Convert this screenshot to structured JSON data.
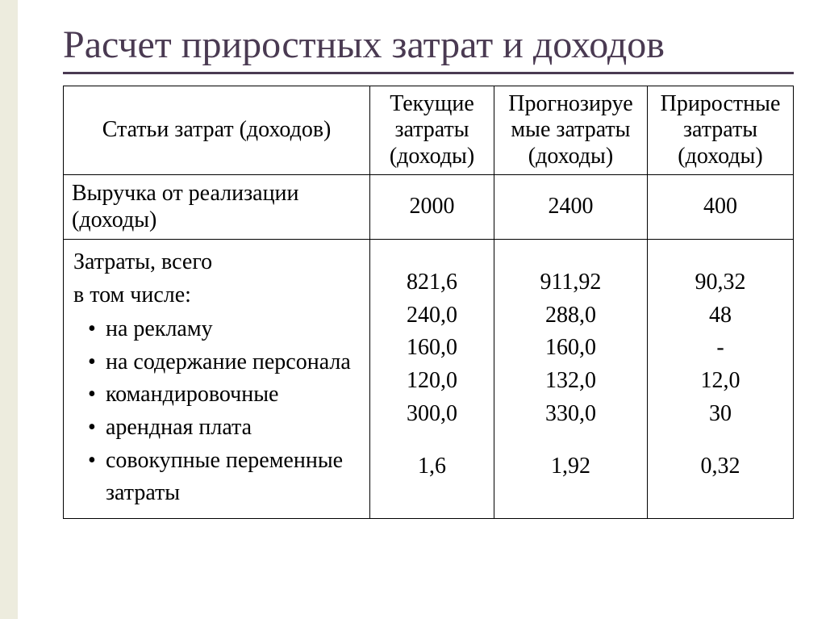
{
  "slide": {
    "title": "Расчет приростных затрат и доходов",
    "title_color": "#4a3a52",
    "accent_bar_color": "#edecde",
    "border_color": "#000000",
    "background_color": "#ffffff",
    "font_family": "Times New Roman",
    "title_fontsize_pt": 36,
    "cell_fontsize_pt": 21
  },
  "table": {
    "columns": [
      {
        "label_line1": "Статьи затрат (доходов)",
        "align": "center",
        "width_pct": 42
      },
      {
        "label_line1": "Текущие",
        "label_line2": "затраты",
        "label_line3": "(доходы)",
        "align": "center",
        "width_pct": 17
      },
      {
        "label_line1": "Прогнозируе",
        "label_line2": "мые затраты",
        "label_line3": "(доходы)",
        "align": "center",
        "width_pct": 21
      },
      {
        "label_line1": "Приростные",
        "label_line2": "затраты",
        "label_line3": "(доходы)",
        "align": "center",
        "width_pct": 20
      }
    ],
    "row_revenue": {
      "label_line1": "Выручка от реализации",
      "label_line2": "(доходы)",
      "current": "2000",
      "forecast": "2400",
      "incremental": "400"
    },
    "body": {
      "intro_line1": "Затраты, всего",
      "intro_line2": "в том числе:",
      "items": [
        "на рекламу",
        "на содержание персонала",
        "командировочные",
        "арендная плата",
        "совокупные переменные затраты"
      ],
      "current": [
        "821,6",
        "240,0",
        "160,0",
        "120,0",
        "300,0",
        "1,6"
      ],
      "forecast": [
        "911,92",
        "288,0",
        "160,0",
        "132,0",
        "330,0",
        "1,92"
      ],
      "incremental": [
        "90,32",
        "48",
        "-",
        "12,0",
        "30",
        "0,32"
      ]
    }
  }
}
